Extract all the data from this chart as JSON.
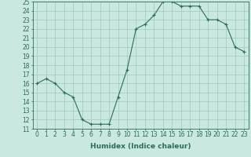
{
  "x": [
    0,
    1,
    2,
    3,
    4,
    5,
    6,
    7,
    8,
    9,
    10,
    11,
    12,
    13,
    14,
    15,
    16,
    17,
    18,
    19,
    20,
    21,
    22,
    23
  ],
  "y": [
    16,
    16.5,
    16,
    15,
    14.5,
    12,
    11.5,
    11.5,
    11.5,
    14.5,
    17.5,
    22,
    22.5,
    23.5,
    25,
    25,
    24.5,
    24.5,
    24.5,
    23,
    23,
    22.5,
    20,
    19.5
  ],
  "line_color": "#2e6b5e",
  "marker": "+",
  "bg_color": "#c8e8e0",
  "grid_color": "#a0c8c0",
  "xlabel": "Humidex (Indice chaleur)",
  "ylim": [
    11,
    25
  ],
  "xlim": [
    -0.5,
    23.5
  ],
  "yticks": [
    11,
    12,
    13,
    14,
    15,
    16,
    17,
    18,
    19,
    20,
    21,
    22,
    23,
    24,
    25
  ],
  "xticks": [
    0,
    1,
    2,
    3,
    4,
    5,
    6,
    7,
    8,
    9,
    10,
    11,
    12,
    13,
    14,
    15,
    16,
    17,
    18,
    19,
    20,
    21,
    22,
    23
  ],
  "xtick_labels": [
    "0",
    "1",
    "2",
    "3",
    "4",
    "5",
    "6",
    "7",
    "8",
    "9",
    "10",
    "11",
    "12",
    "13",
    "14",
    "15",
    "16",
    "17",
    "18",
    "19",
    "20",
    "21",
    "22",
    "23"
  ],
  "tick_fontsize": 5.5,
  "xlabel_fontsize": 6.5,
  "xlabel_fontweight": "bold"
}
